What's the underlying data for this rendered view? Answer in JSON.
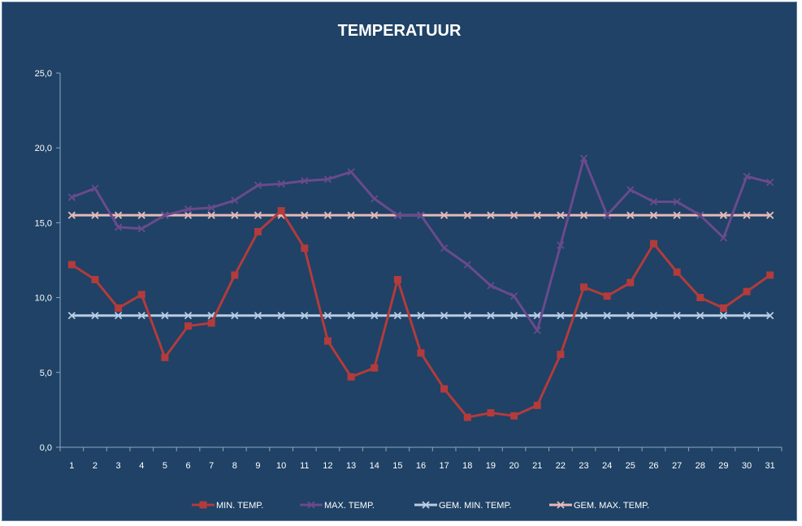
{
  "chart_data": {
    "type": "line",
    "title": "TEMPERATUUR",
    "xlabel": "",
    "ylabel": "",
    "categories": [
      "1",
      "2",
      "3",
      "4",
      "5",
      "6",
      "7",
      "8",
      "9",
      "10",
      "11",
      "12",
      "13",
      "14",
      "15",
      "16",
      "17",
      "18",
      "19",
      "20",
      "21",
      "22",
      "23",
      "24",
      "25",
      "26",
      "27",
      "28",
      "29",
      "30",
      "31"
    ],
    "ylim": [
      0,
      25
    ],
    "yticks": [
      "0,0",
      "5,0",
      "10,0",
      "15,0",
      "20,0",
      "25,0"
    ],
    "grid": false,
    "legend_position": "bottom",
    "series": [
      {
        "name": "MIN. TEMP.",
        "color": "#b33b3b",
        "marker": "square",
        "values": [
          12.2,
          11.2,
          9.3,
          10.2,
          6.0,
          8.1,
          8.3,
          11.5,
          14.4,
          15.8,
          13.3,
          7.1,
          4.7,
          5.3,
          11.2,
          6.3,
          3.9,
          2.0,
          2.3,
          2.1,
          2.8,
          6.2,
          10.7,
          10.1,
          11.0,
          13.6,
          11.7,
          10.0,
          9.3,
          10.4,
          11.5
        ]
      },
      {
        "name": "MAX. TEMP.",
        "color": "#6a4a8c",
        "marker": "x",
        "values": [
          16.7,
          17.3,
          14.7,
          14.6,
          15.5,
          15.9,
          16.0,
          16.5,
          17.5,
          17.6,
          17.8,
          17.9,
          18.4,
          16.6,
          15.5,
          15.5,
          13.3,
          12.2,
          10.8,
          10.1,
          7.8,
          13.5,
          19.3,
          15.5,
          17.2,
          16.4,
          16.4,
          15.5,
          14.0,
          18.1,
          17.7
        ]
      },
      {
        "name": "GEM. MIN. TEMP.",
        "color": "#b8cce4",
        "marker": "x",
        "values": [
          8.8,
          8.8,
          8.8,
          8.8,
          8.8,
          8.8,
          8.8,
          8.8,
          8.8,
          8.8,
          8.8,
          8.8,
          8.8,
          8.8,
          8.8,
          8.8,
          8.8,
          8.8,
          8.8,
          8.8,
          8.8,
          8.8,
          8.8,
          8.8,
          8.8,
          8.8,
          8.8,
          8.8,
          8.8,
          8.8,
          8.8
        ]
      },
      {
        "name": "GEM. MAX. TEMP.",
        "color": "#e6b9b8",
        "marker": "x",
        "values": [
          15.5,
          15.5,
          15.5,
          15.5,
          15.5,
          15.5,
          15.5,
          15.5,
          15.5,
          15.5,
          15.5,
          15.5,
          15.5,
          15.5,
          15.5,
          15.5,
          15.5,
          15.5,
          15.5,
          15.5,
          15.5,
          15.5,
          15.5,
          15.5,
          15.5,
          15.5,
          15.5,
          15.5,
          15.5,
          15.5,
          15.5
        ]
      }
    ]
  }
}
